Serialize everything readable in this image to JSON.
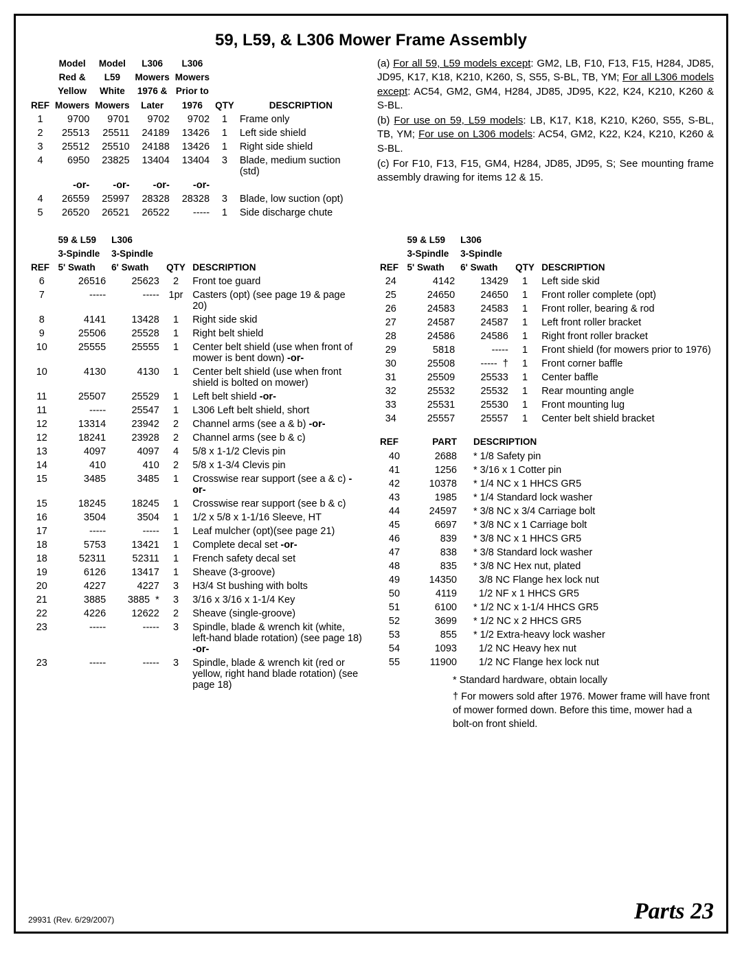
{
  "title": "59, L59, & L306 Mower Frame Assembly",
  "footer": {
    "rev": "29931 (Rev. 6/29/2007)",
    "page": "Parts 23"
  },
  "table1": {
    "hdr": {
      "ref": "REF",
      "c1a": "Model",
      "c1b": "Red &",
      "c1c": "Yellow",
      "c1d": "Mowers",
      "c2a": "Model",
      "c2b": "L59",
      "c2c": "White",
      "c2d": "Mowers",
      "c3a": "L306",
      "c3b": "Mowers",
      "c3c": "1976 &",
      "c3d": "Later",
      "c4a": "L306",
      "c4b": "Mowers",
      "c4c": "Prior to",
      "c4d": "1976",
      "qty": "QTY",
      "desc": "DESCRIPTION"
    },
    "rows": [
      {
        "ref": "1",
        "c1": "9700",
        "c2": "9701",
        "c3": "9702",
        "c4": "9702",
        "qty": "1",
        "desc": "Frame only"
      },
      {
        "ref": "2",
        "c1": "25513",
        "c2": "25511",
        "c3": "24189",
        "c4": "13426",
        "qty": "1",
        "desc": "Left side shield"
      },
      {
        "ref": "3",
        "c1": "25512",
        "c2": "25510",
        "c3": "24188",
        "c4": "13426",
        "qty": "1",
        "desc": "Right side shield"
      },
      {
        "ref": "4",
        "c1": "6950",
        "c2": "23825",
        "c3": "13404",
        "c4": "13404",
        "qty": "3",
        "desc": "Blade, medium suction (std)"
      },
      {
        "ref": "",
        "c1": "-or-",
        "c2": "-or-",
        "c3": "-or-",
        "c4": "-or-",
        "qty": "",
        "desc": "",
        "bold": true
      },
      {
        "ref": "4",
        "c1": "26559",
        "c2": "25997",
        "c3": "28328",
        "c4": "28328",
        "qty": "3",
        "desc": "Blade, low suction (opt)"
      },
      {
        "ref": "5",
        "c1": "26520",
        "c2": "26521",
        "c3": "26522",
        "c4": "-----",
        "qty": "1",
        "desc": "Side discharge chute"
      }
    ]
  },
  "notes": {
    "a1": "(a) ",
    "a_u1": "For all 59, L59 models except",
    "a2": ": GM2, LB, F10, F13, F15, H284, JD85, JD95, K17, K18, K210, K260, S, S55, S-BL, TB, YM; ",
    "a_u2": "For all L306 models except",
    "a3": ": AC54, GM2, GM4, H284, JD85, JD95, K22, K24, K210, K260 & S-BL.",
    "b1": "(b) ",
    "b_u1": "For use on 59, L59 models",
    "b2": ": LB, K17, K18, K210, K260, S55, S-BL, TB, YM; ",
    "b_u2": "For use on L306 models",
    "b3": ": AC54, GM2, K22, K24, K210, K260 & S-BL.",
    "c": "(c) For F10, F13, F15, GM4, H284, JD85, JD95, S; See mounting frame assembly drawing for items 12 & 15."
  },
  "table2": {
    "hdr": {
      "ref": "REF",
      "c1a": "59 & L59",
      "c1b": "3-Spindle",
      "c1c": "5' Swath",
      "c2a": "L306",
      "c2b": "3-Spindle",
      "c2c": "6' Swath",
      "qty": "QTY",
      "desc": "DESCRIPTION"
    },
    "rows": [
      {
        "ref": "6",
        "c1": "26516",
        "c2": "25623",
        "qty": "2",
        "desc": "Front toe guard"
      },
      {
        "ref": "7",
        "c1": "-----",
        "c2": "-----",
        "qty": "1pr",
        "desc": "Casters (opt) (see page 19 & page 20)"
      },
      {
        "ref": "8",
        "c1": "4141",
        "c2": "13428",
        "qty": "1",
        "desc": "Right side skid"
      },
      {
        "ref": "9",
        "c1": "25506",
        "c2": "25528",
        "qty": "1",
        "desc": "Right belt shield"
      },
      {
        "ref": "10",
        "c1": "25555",
        "c2": "25555",
        "qty": "1",
        "desc": "Center belt shield (use when front of mower is bent down) <b>-or-</b>"
      },
      {
        "ref": "10",
        "c1": "4130",
        "c2": "4130",
        "qty": "1",
        "desc": "Center belt shield (use when front shield is bolted on mower)"
      },
      {
        "ref": "11",
        "c1": "25507",
        "c2": "25529",
        "qty": "1",
        "desc": "Left belt shield <b>-or-</b>"
      },
      {
        "ref": "11",
        "c1": "-----",
        "c2": "25547",
        "qty": "1",
        "desc": "L306 Left belt shield, short"
      },
      {
        "ref": "12",
        "c1": "13314",
        "c2": "23942",
        "qty": "2",
        "desc": "Channel arms (see a & b) <b>-or-</b>"
      },
      {
        "ref": "12",
        "c1": "18241",
        "c2": "23928",
        "qty": "2",
        "desc": "Channel arms (see b & c)"
      },
      {
        "ref": "13",
        "c1": "4097",
        "c2": "4097",
        "qty": "4",
        "desc": "5/8 x 1-1/2 Clevis pin"
      },
      {
        "ref": "14",
        "c1": "410",
        "c2": "410",
        "qty": "2",
        "desc": "5/8 x 1-3/4 Clevis pin"
      },
      {
        "ref": "15",
        "c1": "3485",
        "c2": "3485",
        "qty": "1",
        "desc": "Crosswise rear support (see a & c) <b>-or-</b>"
      },
      {
        "ref": "15",
        "c1": "18245",
        "c2": "18245",
        "qty": "1",
        "desc": "Crosswise rear support (see b & c)"
      },
      {
        "ref": "16",
        "c1": "3504",
        "c2": "3504",
        "qty": "1",
        "desc": "1/2 x 5/8 x 1-1/16 Sleeve, HT"
      },
      {
        "ref": "17",
        "c1": "-----",
        "c2": "-----",
        "qty": "1",
        "desc": "Leaf mulcher (opt)(see page 21)"
      },
      {
        "ref": "18",
        "c1": "5753",
        "c2": "13421",
        "qty": "1",
        "desc": "Complete decal set <b>-or-</b>"
      },
      {
        "ref": "18",
        "c1": "52311",
        "c2": "52311",
        "qty": "1",
        "desc": "French safety decal set"
      },
      {
        "ref": "19",
        "c1": "6126",
        "c2": "13417",
        "qty": "1",
        "desc": "Sheave (3-groove)"
      },
      {
        "ref": "20",
        "c1": "4227",
        "c2": "4227",
        "qty": "3",
        "desc": "H3/4 St bushing with bolts"
      },
      {
        "ref": "21",
        "c1": "3885",
        "c2": "3885",
        "star": "*",
        "qty": "3",
        "desc": "3/16 x 3/16 x 1-1/4 Key"
      },
      {
        "ref": "22",
        "c1": "4226",
        "c2": "12622",
        "qty": "2",
        "desc": "Sheave (single-groove)"
      },
      {
        "ref": "23",
        "c1": "-----",
        "c2": "-----",
        "qty": "3",
        "desc": "Spindle, blade & wrench kit (white, left-hand blade rotation) (see page 18) <b>-or-</b>"
      },
      {
        "ref": "23",
        "c1": "-----",
        "c2": "-----",
        "qty": "3",
        "desc": "Spindle, blade & wrench kit (red or yellow, right hand blade rotation) (see page 18)"
      }
    ]
  },
  "table3": {
    "hdr": {
      "ref": "REF",
      "c1a": "59 & L59",
      "c1b": "3-Spindle",
      "c1c": "5' Swath",
      "c2a": "L306",
      "c2b": "3-Spindle",
      "c2c": "6' Swath",
      "qty": "QTY",
      "desc": "DESCRIPTION"
    },
    "rows": [
      {
        "ref": "24",
        "c1": "4142",
        "c2": "13429",
        "qty": "1",
        "desc": "Left side skid"
      },
      {
        "ref": "25",
        "c1": "24650",
        "c2": "24650",
        "qty": "1",
        "desc": "Front roller complete (opt)"
      },
      {
        "ref": "26",
        "c1": "24583",
        "c2": "24583",
        "qty": "1",
        "desc": "Front roller, bearing & rod"
      },
      {
        "ref": "27",
        "c1": "24587",
        "c2": "24587",
        "qty": "1",
        "desc": "Left front roller bracket"
      },
      {
        "ref": "28",
        "c1": "24586",
        "c2": "24586",
        "qty": "1",
        "desc": "Right front roller bracket"
      },
      {
        "ref": "29",
        "c1": "5818",
        "c2": "-----",
        "qty": "1",
        "desc": "Front shield (for mowers prior to 1976)"
      },
      {
        "ref": "30",
        "c1": "25508",
        "c2": "-----",
        "dag": "†",
        "qty": "1",
        "desc": "Front corner baffle"
      },
      {
        "ref": "31",
        "c1": "25509",
        "c2": "25533",
        "qty": "1",
        "desc": "Center baffle"
      },
      {
        "ref": "32",
        "c1": "25532",
        "c2": "25532",
        "qty": "1",
        "desc": "Rear mounting angle"
      },
      {
        "ref": "33",
        "c1": "25531",
        "c2": "25530",
        "qty": "1",
        "desc": "Front mounting lug"
      },
      {
        "ref": "34",
        "c1": "25557",
        "c2": "25557",
        "qty": "1",
        "desc": "Center belt shield bracket"
      }
    ]
  },
  "table4": {
    "hdr": {
      "ref": "REF",
      "part": "PART",
      "desc": "DESCRIPTION"
    },
    "rows": [
      {
        "ref": "40",
        "part": "2688",
        "desc": "* 1/8 Safety pin"
      },
      {
        "ref": "41",
        "part": "1256",
        "desc": "* 3/16 x 1 Cotter pin"
      },
      {
        "ref": "42",
        "part": "10378",
        "desc": "* 1/4 NC x 1 HHCS GR5"
      },
      {
        "ref": "43",
        "part": "1985",
        "desc": "* 1/4 Standard lock washer"
      },
      {
        "ref": "44",
        "part": "24597",
        "desc": "* 3/8 NC x 3/4 Carriage bolt"
      },
      {
        "ref": "45",
        "part": "6697",
        "desc": "* 3/8 NC x 1 Carriage bolt"
      },
      {
        "ref": "46",
        "part": "839",
        "desc": "* 3/8 NC x 1 HHCS GR5"
      },
      {
        "ref": "47",
        "part": "838",
        "desc": "* 3/8 Standard lock washer"
      },
      {
        "ref": "48",
        "part": "835",
        "desc": "* 3/8 NC Hex nut, plated"
      },
      {
        "ref": "49",
        "part": "14350",
        "desc": "  3/8 NC Flange hex lock nut"
      },
      {
        "ref": "50",
        "part": "4119",
        "desc": "  1/2 NF x 1 HHCS GR5"
      },
      {
        "ref": "51",
        "part": "6100",
        "desc": "* 1/2 NC x 1-1/4 HHCS GR5"
      },
      {
        "ref": "52",
        "part": "3699",
        "desc": "* 1/2 NC x 2 HHCS GR5"
      },
      {
        "ref": "53",
        "part": "855",
        "desc": "* 1/2 Extra-heavy lock washer"
      },
      {
        "ref": "54",
        "part": "1093",
        "desc": "  1/2 NC Heavy hex nut"
      },
      {
        "ref": "55",
        "part": "11900",
        "desc": "  1/2 NC Flange hex lock nut"
      }
    ],
    "notes": {
      "star": "* Standard hardware, obtain locally",
      "dag": "† For mowers sold after 1976. Mower frame will have front of mower formed down. Before this time, mower had a bolt-on front shield."
    }
  }
}
